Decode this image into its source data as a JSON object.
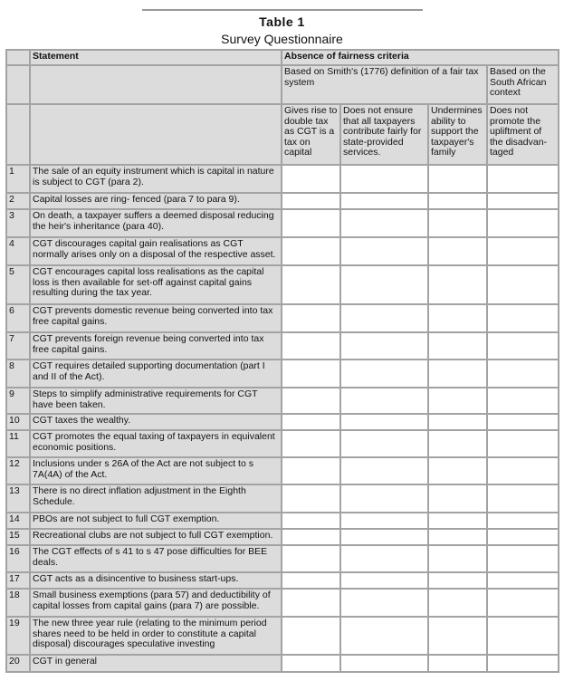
{
  "title": "Table 1",
  "subtitle": "Survey Questionnaire",
  "header": {
    "statement": "Statement",
    "group": "Absence of  fairness  criteria",
    "smith": "Based on Smith's (1776) definition of a fair tax system",
    "sa": "Based on the South African context",
    "criteria": [
      "Gives rise to double tax as CGT is a tax on capital",
      "Does not ensure that all taxpayers contribute fairly for state-provided services.",
      "Undermines ability to support the taxpayer's family",
      "Does not promote the upliftment of the disadvan-taged"
    ]
  },
  "rows": [
    {
      "n": "1",
      "text": "The sale of an equity instrument which is capital in nature is subject to CGT (para 2)."
    },
    {
      "n": "2",
      "text": "Capital losses are ring- fenced (para 7 to para 9)."
    },
    {
      "n": "3",
      "text": "On death, a taxpayer suffers a deemed disposal reducing the heir's inheritance (para 40)."
    },
    {
      "n": "4",
      "text": "CGT discourages capital gain realisations as CGT normally arises only on a disposal of the respective asset."
    },
    {
      "n": "5",
      "text": "CGT encourages capital loss realisations as the capital loss is then available for set-off against capital gains resulting during the tax year."
    },
    {
      "n": "6",
      "text": "CGT prevents domestic revenue being converted into tax free capital gains."
    },
    {
      "n": "7",
      "text": "CGT prevents foreign revenue being converted into tax free capital gains."
    },
    {
      "n": "8",
      "text": "CGT requires detailed supporting documentation (part I and II of the Act)."
    },
    {
      "n": "9",
      "text": "Steps to simplify administrative requirements for CGT have been taken."
    },
    {
      "n": "10",
      "text": "CGT taxes the wealthy."
    },
    {
      "n": "11",
      "text": "CGT promotes the equal taxing of taxpayers in equivalent economic positions."
    },
    {
      "n": "12",
      "text": "Inclusions under s 26A of the Act are not subject to s 7A(4A) of the Act."
    },
    {
      "n": "13",
      "text": "There is no direct inflation adjustment in the Eighth Schedule."
    },
    {
      "n": "14",
      "text": "PBOs are not subject to full CGT exemption."
    },
    {
      "n": "15",
      "text": "Recreational clubs are not subject to full CGT exemption."
    },
    {
      "n": "16",
      "text": "The CGT effects of s 41 to s 47 pose difficulties for BEE deals."
    },
    {
      "n": "17",
      "text": "CGT acts as a disincentive to business start-ups."
    },
    {
      "n": "18",
      "text": "Small business exemptions (para 57) and deductibility of capital losses from capital gains (para 7) are possible."
    },
    {
      "n": "19",
      "text": "The new three year rule (relating to the minimum period shares need to be held in order to constitute a capital disposal) discourages speculative investing"
    },
    {
      "n": "20",
      "text": "CGT in general"
    }
  ]
}
